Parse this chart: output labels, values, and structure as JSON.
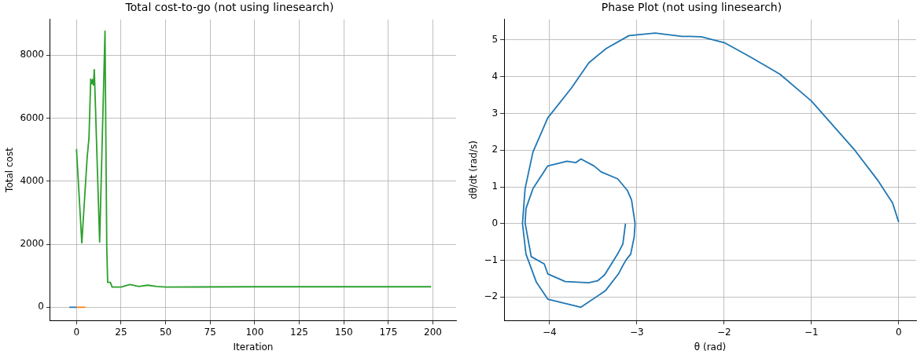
{
  "chart_data": [
    {
      "type": "line",
      "title": "Total cost-to-go (not using linesearch)",
      "xlabel": "Iteration",
      "ylabel": "Total cost",
      "xlim": [
        -14.7,
        213
      ],
      "ylim": [
        -420,
        9130
      ],
      "xticks": [
        0,
        25,
        50,
        75,
        100,
        125,
        150,
        175,
        200
      ],
      "yticks": [
        0,
        2000,
        4000,
        6000,
        8000
      ],
      "grid": true,
      "series": [
        {
          "color": "#1f77b4",
          "x": [
            -4,
            0
          ],
          "values": [
            0,
            0
          ]
        },
        {
          "color": "#ff7f0e",
          "x": [
            0,
            5
          ],
          "values": [
            0,
            0
          ]
        },
        {
          "color": "#2ca02c",
          "x": [
            0,
            3,
            6,
            7,
            8,
            8.5,
            9,
            9.5,
            10,
            13,
            16,
            17,
            17.5,
            19,
            20,
            25,
            30,
            35,
            40,
            45,
            50,
            100,
            150,
            199
          ],
          "values": [
            5020,
            2040,
            4760,
            5360,
            7240,
            7090,
            7220,
            7050,
            7540,
            2070,
            8760,
            1890,
            790,
            790,
            640,
            640,
            720,
            660,
            700,
            660,
            640,
            650,
            650,
            650
          ]
        }
      ]
    },
    {
      "type": "line",
      "title": "Phase Plot (not using linesearch)",
      "xlabel": "θ (rad)",
      "ylabel": "dθ/dt (rad/s)",
      "xlim": [
        -4.52,
        0.2
      ],
      "ylim": [
        -2.64,
        5.56
      ],
      "xticks": [
        {
          "value": -4,
          "label": "−4"
        },
        {
          "value": -3,
          "label": "−3"
        },
        {
          "value": -2,
          "label": "−2"
        },
        {
          "value": -1,
          "label": "−1"
        },
        0
      ],
      "yticks": [
        {
          "value": -2,
          "label": "−2"
        },
        {
          "value": -1,
          "label": "−1"
        },
        0,
        1,
        2,
        3,
        4,
        5
      ],
      "grid": true,
      "color": "#1f77b4",
      "x": [
        0,
        -0.07,
        -0.24,
        -0.5,
        -1.0,
        -1.36,
        -1.7,
        -1.99,
        -2.26,
        -2.39,
        -2.48,
        -2.79,
        -3.09,
        -3.35,
        -3.55,
        -3.75,
        -4.02,
        -4.19,
        -4.28,
        -4.31,
        -4.27,
        -4.15,
        -4.02,
        -3.64,
        -3.36,
        -3.21,
        -3.15,
        -3.12,
        -3.07,
        -3.03,
        -3.02,
        -3.06,
        -3.11,
        -3.22,
        -3.41,
        -3.49,
        -3.64,
        -3.7,
        -3.8,
        -4.02,
        -4.19,
        -4.27,
        -4.28,
        -4.21,
        -4.06,
        -4.02,
        -3.82,
        -3.55,
        -3.45,
        -3.37,
        -3.22,
        -3.16,
        -3.13
      ],
      "values": [
        0.04,
        0.56,
        1.18,
        1.99,
        3.34,
        4.07,
        4.54,
        4.92,
        5.09,
        5.1,
        5.1,
        5.19,
        5.12,
        4.77,
        4.38,
        3.69,
        2.88,
        1.95,
        0.95,
        0,
        -0.83,
        -1.6,
        -2.06,
        -2.28,
        -1.83,
        -1.37,
        -1.1,
        -0.98,
        -0.83,
        -0.36,
        0,
        0.64,
        0.91,
        1.22,
        1.41,
        1.57,
        1.76,
        1.66,
        1.7,
        1.57,
        0.95,
        0.41,
        0.02,
        -0.9,
        -1.1,
        -1.37,
        -1.58,
        -1.61,
        -1.56,
        -1.4,
        -0.83,
        -0.56,
        0
      ]
    }
  ]
}
